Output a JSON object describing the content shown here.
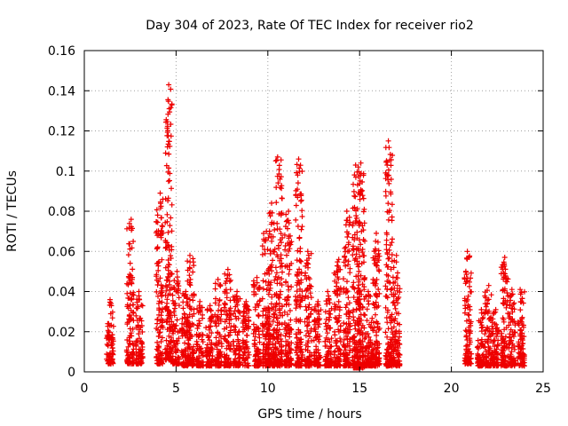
{
  "chart_data": {
    "type": "scatter",
    "title": "Day 304 of 2023, Rate Of TEC Index for receiver rio2",
    "xlabel": "GPS time / hours",
    "ylabel": "ROTI / TECUs",
    "xlim": [
      0,
      25
    ],
    "ylim": [
      0,
      0.16
    ],
    "xticks": [
      0,
      5,
      10,
      15,
      20,
      25
    ],
    "yticks": [
      0,
      0.02,
      0.04,
      0.06,
      0.08,
      0.1,
      0.12,
      0.14,
      0.16
    ],
    "grid": true,
    "marker": "+",
    "color": "#ee0000",
    "clusters": [
      {
        "x": 1.4,
        "ymin": 0.004,
        "ymax": 0.036
      },
      {
        "x": 2.5,
        "ymin": 0.004,
        "ymax": 0.076
      },
      {
        "x": 3.0,
        "ymin": 0.004,
        "ymax": 0.04
      },
      {
        "x": 4.1,
        "ymin": 0.004,
        "ymax": 0.089
      },
      {
        "x": 4.6,
        "ymin": 0.006,
        "ymax": 0.143
      },
      {
        "x": 5.0,
        "ymin": 0.004,
        "ymax": 0.05
      },
      {
        "x": 5.5,
        "ymin": 0.003,
        "ymax": 0.04
      },
      {
        "x": 5.8,
        "ymin": 0.003,
        "ymax": 0.058
      },
      {
        "x": 6.3,
        "ymin": 0.003,
        "ymax": 0.035
      },
      {
        "x": 6.8,
        "ymin": 0.003,
        "ymax": 0.033
      },
      {
        "x": 7.3,
        "ymin": 0.003,
        "ymax": 0.046
      },
      {
        "x": 7.8,
        "ymin": 0.003,
        "ymax": 0.051
      },
      {
        "x": 8.3,
        "ymin": 0.003,
        "ymax": 0.04
      },
      {
        "x": 8.8,
        "ymin": 0.003,
        "ymax": 0.035
      },
      {
        "x": 9.4,
        "ymin": 0.003,
        "ymax": 0.047
      },
      {
        "x": 9.9,
        "ymin": 0.003,
        "ymax": 0.07
      },
      {
        "x": 10.2,
        "ymin": 0.003,
        "ymax": 0.084
      },
      {
        "x": 10.6,
        "ymin": 0.003,
        "ymax": 0.107
      },
      {
        "x": 11.1,
        "ymin": 0.003,
        "ymax": 0.08
      },
      {
        "x": 11.7,
        "ymin": 0.003,
        "ymax": 0.106
      },
      {
        "x": 12.2,
        "ymin": 0.003,
        "ymax": 0.06
      },
      {
        "x": 12.7,
        "ymin": 0.003,
        "ymax": 0.035
      },
      {
        "x": 13.3,
        "ymin": 0.003,
        "ymax": 0.04
      },
      {
        "x": 13.8,
        "ymin": 0.003,
        "ymax": 0.056
      },
      {
        "x": 14.3,
        "ymin": 0.003,
        "ymax": 0.08
      },
      {
        "x": 14.8,
        "ymin": 0.002,
        "ymax": 0.103
      },
      {
        "x": 15.1,
        "ymin": 0.002,
        "ymax": 0.104
      },
      {
        "x": 15.5,
        "ymin": 0.003,
        "ymax": 0.04
      },
      {
        "x": 15.9,
        "ymin": 0.003,
        "ymax": 0.069
      },
      {
        "x": 16.6,
        "ymin": 0.003,
        "ymax": 0.115
      },
      {
        "x": 17.0,
        "ymin": 0.003,
        "ymax": 0.058
      },
      {
        "x": 20.9,
        "ymin": 0.004,
        "ymax": 0.06
      },
      {
        "x": 21.6,
        "ymin": 0.003,
        "ymax": 0.031
      },
      {
        "x": 22.0,
        "ymin": 0.003,
        "ymax": 0.043
      },
      {
        "x": 22.4,
        "ymin": 0.003,
        "ymax": 0.031
      },
      {
        "x": 22.9,
        "ymin": 0.003,
        "ymax": 0.057
      },
      {
        "x": 23.3,
        "ymin": 0.003,
        "ymax": 0.041
      },
      {
        "x": 23.8,
        "ymin": 0.003,
        "ymax": 0.041
      }
    ]
  }
}
